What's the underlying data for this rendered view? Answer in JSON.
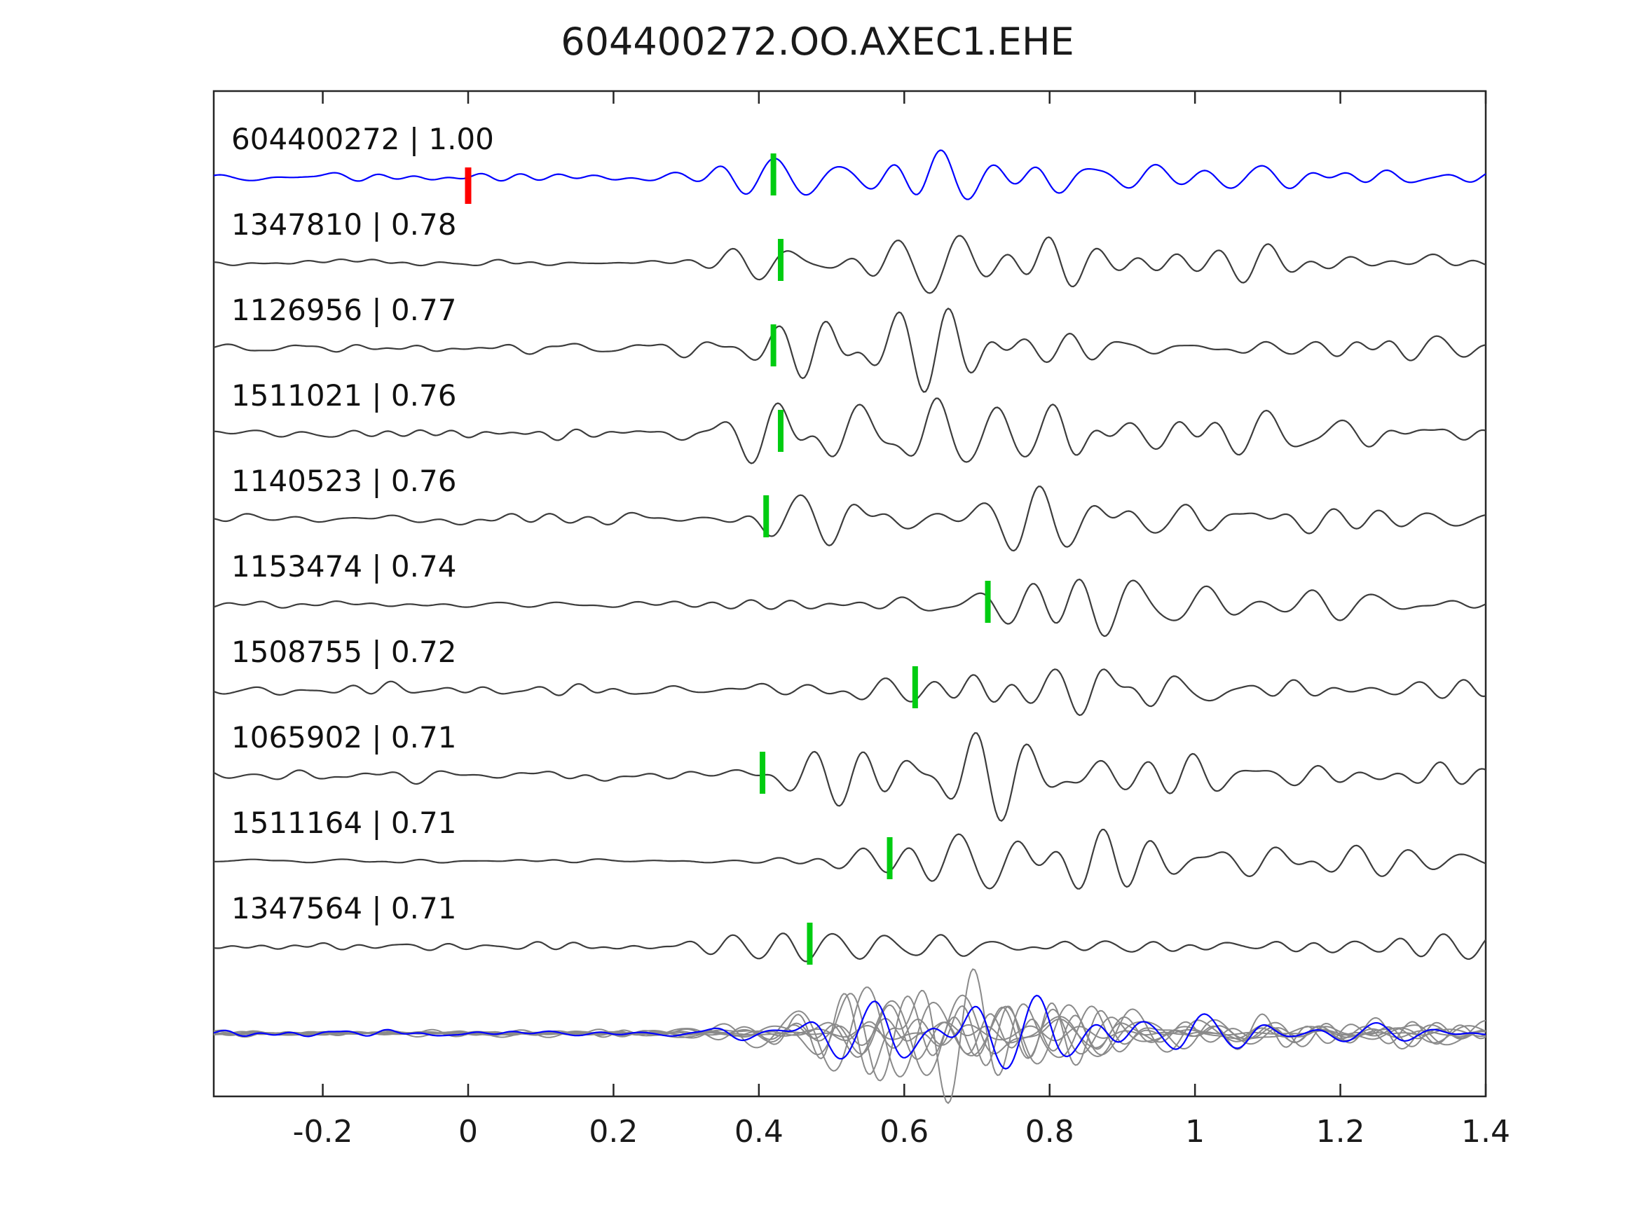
{
  "title": "604400272.OO.AXEC1.EHE",
  "chart_data": {
    "type": "line",
    "title": "604400272.OO.AXEC1.EHE",
    "xlabel": "",
    "ylabel": "",
    "xlim": [
      -0.35,
      1.4
    ],
    "xticks": [
      -0.2,
      0,
      0.2,
      0.4,
      0.6,
      0.8,
      1,
      1.2,
      1.4
    ],
    "xtick_labels": [
      "-0.2",
      "0",
      "0.2",
      "0.4",
      "0.6",
      "0.8",
      "1",
      "1.2",
      "1.4"
    ],
    "grid": false,
    "legend": "none",
    "colors": {
      "reference_trace": "#0000ff",
      "match_trace": "#3c3c3c",
      "overlay_trace": "#8a8a8a",
      "pick_marker": "#00cc11",
      "origin_marker": "#ff0000",
      "axis": "#262626"
    },
    "traces": [
      {
        "id": "604400272",
        "correlation": "1.00",
        "label": "604400272 | 1.00",
        "pick_x": 0.42,
        "origin_x": 0.0,
        "color": "#0000ff",
        "seed": 11,
        "noise_amp": 8,
        "event_amp": 42
      },
      {
        "id": "1347810",
        "correlation": "0.78",
        "label": "1347810 | 0.78",
        "pick_x": 0.43,
        "color": "#3c3c3c",
        "seed": 22,
        "noise_amp": 7,
        "event_amp": 46
      },
      {
        "id": "1126956",
        "correlation": "0.77",
        "label": "1126956 | 0.77",
        "pick_x": 0.42,
        "color": "#3c3c3c",
        "seed": 33,
        "noise_amp": 10,
        "event_amp": 46
      },
      {
        "id": "1511021",
        "correlation": "0.76",
        "label": "1511021 | 0.76",
        "pick_x": 0.43,
        "color": "#3c3c3c",
        "seed": 44,
        "noise_amp": 10,
        "event_amp": 48
      },
      {
        "id": "1140523",
        "correlation": "0.76",
        "label": "1140523 | 0.76",
        "pick_x": 0.41,
        "color": "#3c3c3c",
        "seed": 55,
        "noise_amp": 11,
        "event_amp": 48
      },
      {
        "id": "1153474",
        "correlation": "0.74",
        "label": "1153474 | 0.74",
        "pick_x": 0.715,
        "color": "#3c3c3c",
        "seed": 66,
        "noise_amp": 8,
        "event_amp": 32
      },
      {
        "id": "1508755",
        "correlation": "0.72",
        "label": "1508755 | 0.72",
        "pick_x": 0.615,
        "color": "#3c3c3c",
        "seed": 77,
        "noise_amp": 10,
        "event_amp": 44
      },
      {
        "id": "1065902",
        "correlation": "0.71",
        "label": "1065902 | 0.71",
        "pick_x": 0.405,
        "color": "#3c3c3c",
        "seed": 88,
        "noise_amp": 12,
        "event_amp": 44
      },
      {
        "id": "1511164",
        "correlation": "0.71",
        "label": "1511164 | 0.71",
        "pick_x": 0.58,
        "color": "#3c3c3c",
        "seed": 99,
        "noise_amp": 4,
        "event_amp": 46
      },
      {
        "id": "1347564",
        "correlation": "0.71",
        "label": "1347564 | 0.71",
        "pick_x": 0.47,
        "color": "#3c3c3c",
        "seed": 110,
        "noise_amp": 7,
        "event_amp": 42
      }
    ],
    "overlay": {
      "description": "aligned stack of all matched traces",
      "color": "#8a8a8a",
      "gray_traces": [
        {
          "seed": 201,
          "pick": 0.44,
          "noise": 5,
          "event": 42
        },
        {
          "seed": 202,
          "pick": 0.47,
          "noise": 5,
          "event": 50
        },
        {
          "seed": 203,
          "pick": 0.43,
          "noise": 6,
          "event": 36
        },
        {
          "seed": 204,
          "pick": 0.52,
          "noise": 4,
          "event": 44
        },
        {
          "seed": 205,
          "pick": 0.46,
          "noise": 6,
          "event": 55
        },
        {
          "seed": 206,
          "pick": 0.6,
          "noise": 3,
          "event": 30
        },
        {
          "seed": 207,
          "pick": 0.45,
          "noise": 2,
          "event": 12
        },
        {
          "seed": 208,
          "pick": 0.49,
          "noise": 5,
          "event": 46
        }
      ],
      "blue_trace": {
        "seed": 300,
        "pick": 0.46,
        "noise": 6,
        "event": 40,
        "color": "#0000ff"
      }
    }
  }
}
